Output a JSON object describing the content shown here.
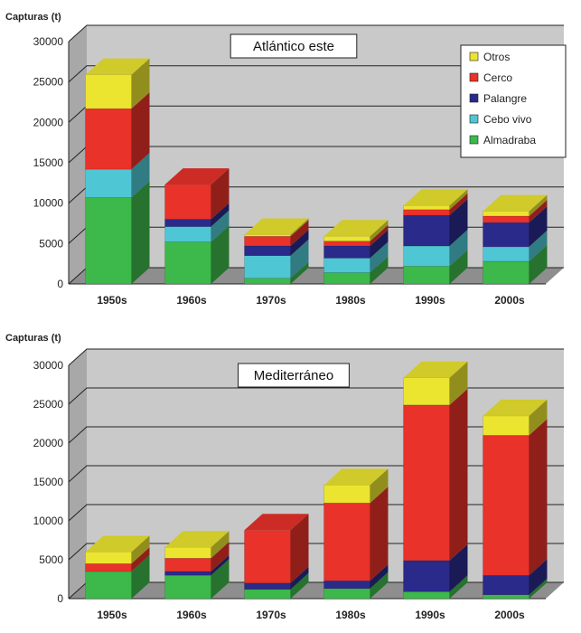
{
  "chart_data": [
    {
      "type": "bar",
      "stacked": true,
      "title": "Atlántico este",
      "ylabel": "Capturas (t)",
      "xlabel": "",
      "ylim": [
        0,
        30000
      ],
      "yticks": [
        0,
        5000,
        10000,
        15000,
        20000,
        25000,
        30000
      ],
      "grid": true,
      "legend_position": "top-right",
      "categories": [
        "1950s",
        "1960s",
        "1970s",
        "1980s",
        "1990s",
        "2000s"
      ],
      "series": [
        {
          "name": "Almadraba",
          "color": "#3db84a",
          "values": [
            10700,
            5200,
            700,
            1400,
            2200,
            2800
          ]
        },
        {
          "name": "Cebo vivo",
          "color": "#4fc6d4",
          "values": [
            3500,
            1900,
            2800,
            1800,
            2500,
            1800
          ]
        },
        {
          "name": "Palangre",
          "color": "#2a2a8a",
          "values": [
            0,
            900,
            1200,
            1500,
            3800,
            3000
          ]
        },
        {
          "name": "Cerco",
          "color": "#e8322a",
          "values": [
            7500,
            4300,
            1200,
            600,
            700,
            800
          ]
        },
        {
          "name": "Otros",
          "color": "#ece530",
          "values": [
            4200,
            0,
            200,
            600,
            500,
            600
          ]
        }
      ],
      "legend": [
        "Otros",
        "Cerco",
        "Palangre",
        "Cebo vivo",
        "Almadraba"
      ]
    },
    {
      "type": "bar",
      "stacked": true,
      "title": "Mediterráneo",
      "ylabel": "Capturas (t)",
      "xlabel": "",
      "ylim": [
        0,
        30000
      ],
      "yticks": [
        0,
        5000,
        10000,
        15000,
        20000,
        25000,
        30000
      ],
      "grid": true,
      "categories": [
        "1950s",
        "1960s",
        "1970s",
        "1980s",
        "1990s",
        "2000s"
      ],
      "series": [
        {
          "name": "Almadraba",
          "color": "#3db84a",
          "values": [
            3500,
            3000,
            1200,
            1300,
            900,
            500
          ]
        },
        {
          "name": "Cebo vivo",
          "color": "#4fc6d4",
          "values": [
            0,
            0,
            0,
            0,
            0,
            0
          ]
        },
        {
          "name": "Palangre",
          "color": "#2a2a8a",
          "values": [
            0,
            500,
            800,
            1000,
            4000,
            2500
          ]
        },
        {
          "name": "Cerco",
          "color": "#e8322a",
          "values": [
            1000,
            1700,
            6800,
            10000,
            20000,
            18000
          ]
        },
        {
          "name": "Otros",
          "color": "#ece530",
          "values": [
            1500,
            1400,
            0,
            2300,
            3500,
            2500
          ]
        }
      ]
    }
  ]
}
